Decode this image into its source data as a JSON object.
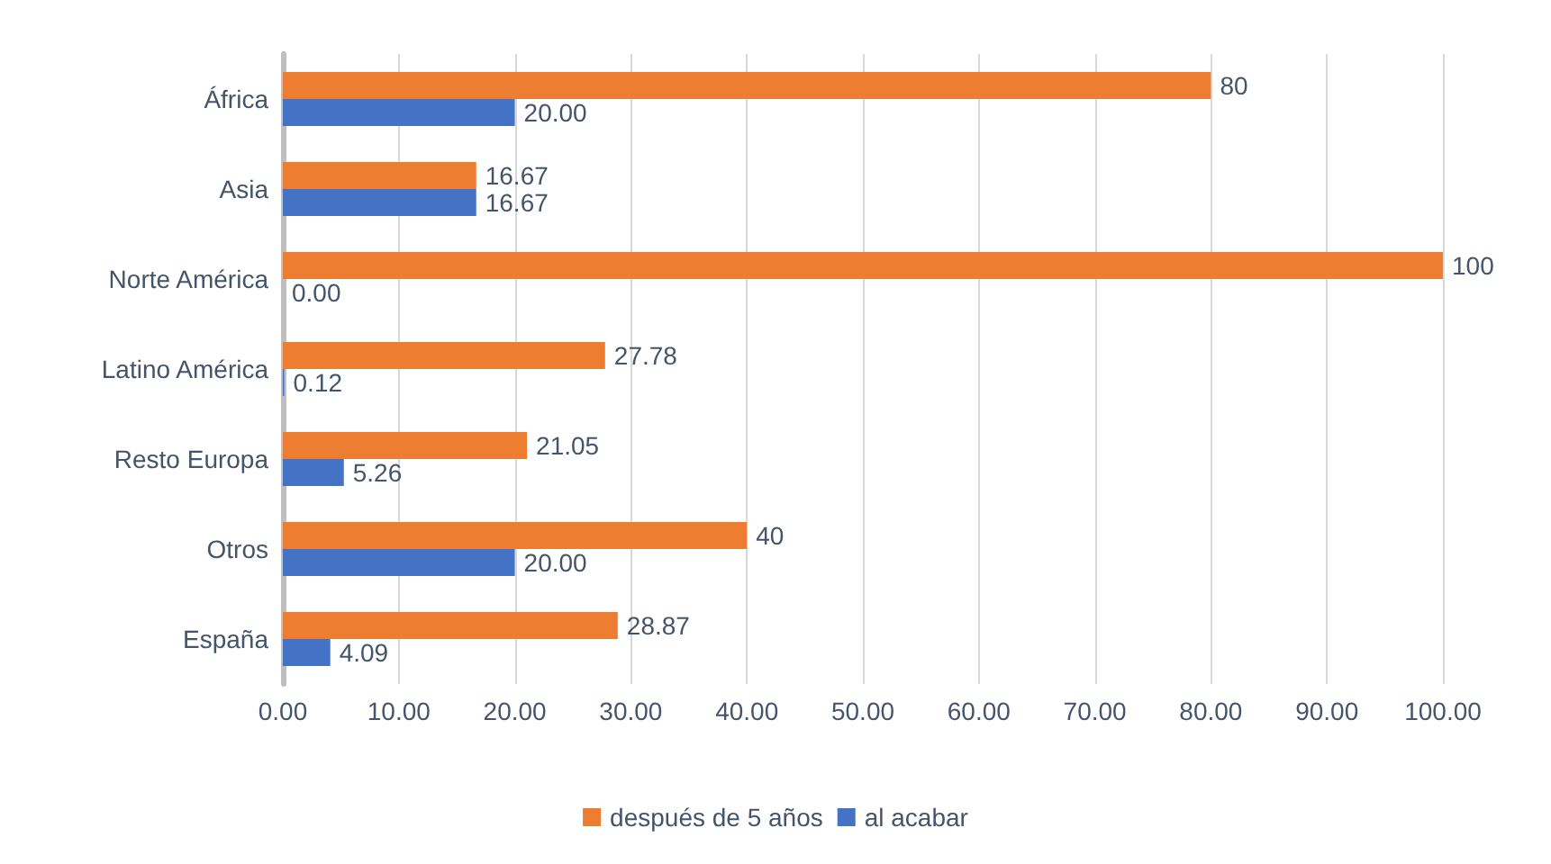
{
  "chart_data": {
    "type": "bar",
    "orientation": "horizontal",
    "categories": [
      "África",
      "Asia",
      "Norte América",
      "Latino América",
      "Resto Europa",
      "Otros",
      "España"
    ],
    "series": [
      {
        "name": "después de 5 años",
        "color": "#ed7d31",
        "values": [
          80,
          16.67,
          100,
          27.78,
          21.05,
          40,
          28.87
        ],
        "value_labels": [
          "80",
          "16.67",
          "100",
          "27.78",
          "21.05",
          "40",
          "28.87"
        ]
      },
      {
        "name": "al acabar",
        "color": "#4472c4",
        "values": [
          20,
          16.67,
          0,
          0.12,
          5.26,
          20,
          4.09
        ],
        "value_labels": [
          "20.00",
          "16.67",
          "0.00",
          "0.12",
          "5.26",
          "20.00",
          "4.09"
        ]
      }
    ],
    "xlim": [
      0,
      100
    ],
    "xticks": [
      {
        "value": 0,
        "label": "0.00"
      },
      {
        "value": 10,
        "label": "10.00"
      },
      {
        "value": 20,
        "label": "20.00"
      },
      {
        "value": 30,
        "label": "30.00"
      },
      {
        "value": 40,
        "label": "40.00"
      },
      {
        "value": 50,
        "label": "50.00"
      },
      {
        "value": 60,
        "label": "60.00"
      },
      {
        "value": 70,
        "label": "70.00"
      },
      {
        "value": 80,
        "label": "80.00"
      },
      {
        "value": 90,
        "label": "90.00"
      },
      {
        "value": 100,
        "label": "100.00"
      }
    ],
    "grid": "x",
    "legend": "bottom"
  }
}
